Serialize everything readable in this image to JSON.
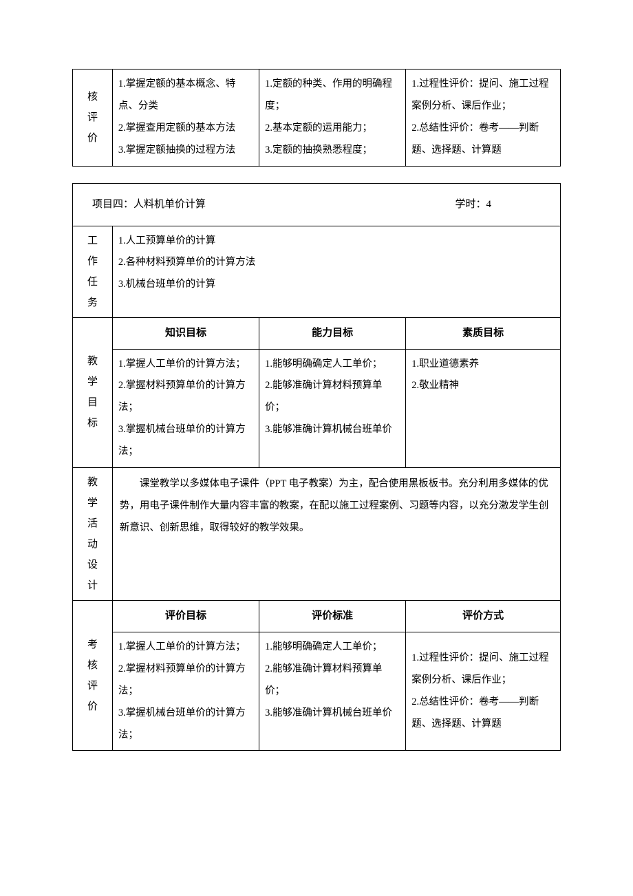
{
  "table1": {
    "rowLabel": "核评价",
    "col1": "1.掌握定额的基本概念、特点、分类\n2.掌握查用定额的基本方法\n3.掌握定额抽换的过程方法",
    "col2": "1.定额的种类、作用的明确程度；\n2.基本定额的运用能力；\n3.定额的抽换熟悉程度；",
    "col3": "1.过程性评价：提问、施工过程案例分析、课后作业；\n2.总结性评价：卷考——判断题、选择题、计算题"
  },
  "table2": {
    "title": {
      "left": "项目四：人料机单价计算",
      "rightLabel": "学时：",
      "rightValue": "4"
    },
    "tasks": {
      "label": "工作任务",
      "content": "1.人工预算单价的计算\n2.各种材料预算单价的计算方法\n3.机械台班单价的计算"
    },
    "goals": {
      "label": "教学目标",
      "headers": [
        "知识目标",
        "能力目标",
        "素质目标"
      ],
      "col1": "1.掌握人工单价的计算方法；\n2.掌握材料预算单价的计算方法；\n3.掌握机械台班单价的计算方法；",
      "col2": "1.能够明确确定人工单价；\n2.能够准确计算材料预算单价；\n3.能够准确计算机械台班单价",
      "col3": "1.职业道德素养\n2.敬业精神"
    },
    "activity": {
      "label": "教学活动设计",
      "content": "课堂教学以多媒体电子课件（PPT 电子教案）为主，配合使用黑板板书。充分利用多媒体的优势，用电子课件制作大量内容丰富的教案，在配以施工过程案例、习题等内容，以充分激发学生创新意识、创新思维，取得较好的教学效果。"
    },
    "eval": {
      "label": "考核评价",
      "headers": [
        "评价目标",
        "评价标准",
        "评价方式"
      ],
      "col1": "1.掌握人工单价的计算方法；\n2.掌握材料预算单价的计算方法；\n3.掌握机械台班单价的计算方法；",
      "col2": "1.能够明确确定人工单价；\n2.能够准确计算材料预算单价；\n3.能够准确计算机械台班单价",
      "col3": "1.过程性评价：提问、施工过程案例分析、课后作业；\n2.总结性评价：卷考——判断题、选择题、计算题"
    }
  }
}
